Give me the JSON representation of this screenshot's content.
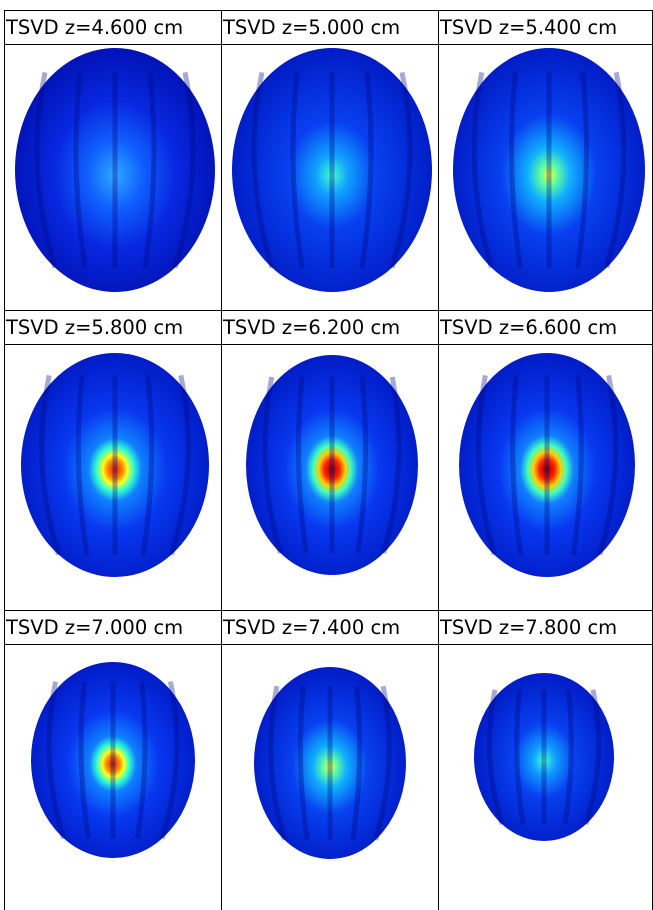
{
  "panels": [
    {
      "title": "TSVD z=4.600 cm"
    },
    {
      "title": "TSVD z=5.000 cm"
    },
    {
      "title": "TSVD z=5.400 cm"
    },
    {
      "title": "TSVD z=5.800 cm"
    },
    {
      "title": "TSVD z=6.200 cm"
    },
    {
      "title": "TSVD z=6.600 cm"
    },
    {
      "title": "TSVD z=7.000 cm"
    },
    {
      "title": "TSVD z=7.400 cm"
    },
    {
      "title": "TSVD z=7.800 cm"
    }
  ]
}
